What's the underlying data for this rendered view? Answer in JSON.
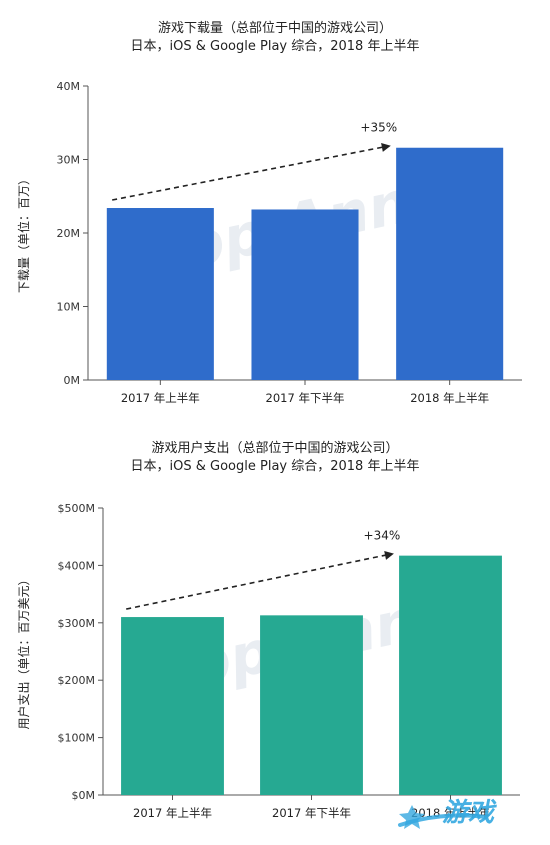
{
  "chart_data": [
    {
      "type": "bar",
      "title": "游戏下载量（总部位于中国的游戏公司）",
      "subtitle": "日本，iOS & Google Play 综合，2018 年上半年",
      "ylabel": "下载量（单位：百万）",
      "xlabel": "",
      "categories": [
        "2017 年上半年",
        "2017 年下半年",
        "2018 年上半年"
      ],
      "values": [
        23.4,
        23.2,
        31.6
      ],
      "ylim": [
        0,
        40
      ],
      "yticks": [
        0,
        10,
        20,
        30,
        40
      ],
      "ytick_labels": [
        "0M",
        "10M",
        "20M",
        "30M",
        "40M"
      ],
      "annotation": "+35%",
      "bar_color": "#2f6ccb",
      "grid": false,
      "watermark": "App Annie"
    },
    {
      "type": "bar",
      "title": "游戏用户支出（总部位于中国的游戏公司）",
      "subtitle": "日本，iOS & Google Play 综合，2018 年上半年",
      "ylabel": "用户支出（单位：百万美元）",
      "xlabel": "",
      "categories": [
        "2017 年上半年",
        "2017 年下半年",
        "2018 年上半年"
      ],
      "values": [
        310,
        313,
        417
      ],
      "ylim": [
        0,
        500
      ],
      "yticks": [
        0,
        100,
        200,
        300,
        400,
        500
      ],
      "ytick_labels": [
        "$0M",
        "$100M",
        "$200M",
        "$300M",
        "$400M",
        "$500M"
      ],
      "annotation": "+34%",
      "bar_color": "#26a992",
      "grid": false,
      "watermark": "App Annie"
    }
  ],
  "corner_logo": {
    "text": "游戏",
    "color": "#34a8e0"
  }
}
